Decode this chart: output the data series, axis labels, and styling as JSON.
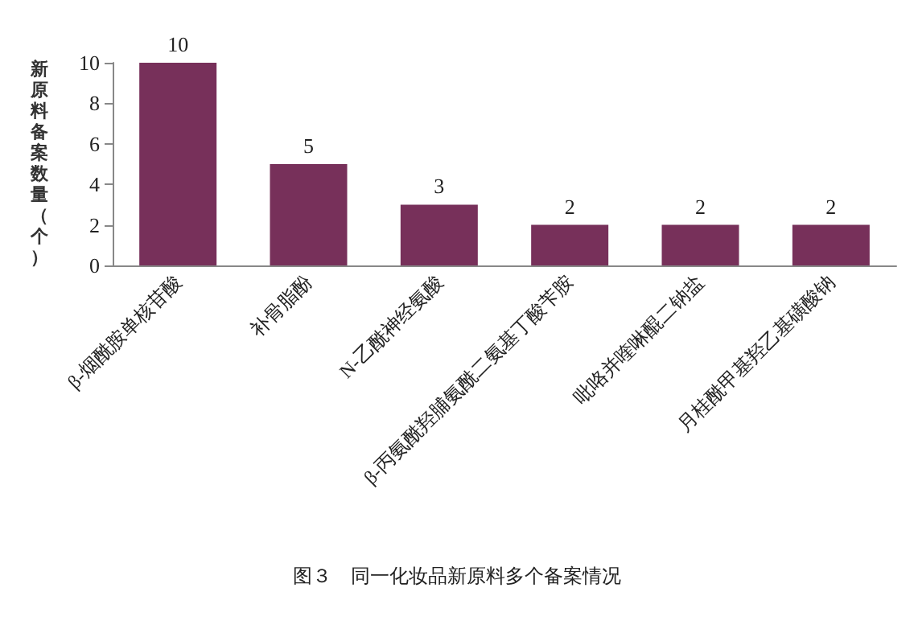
{
  "chart_data": {
    "type": "bar",
    "title": "图３　同一化妆品新原料多个备案情况",
    "ylabel": "新原料备案数量（个）",
    "categories": [
      "β-烟酰胺单核苷酸",
      "补骨脂酚",
      "N-乙酰神经氨酸",
      "β-丙氨酰羟脯氨酰二氨基丁酸苄胺",
      "吡咯并喹啉醌二钠盐",
      "月桂酰甲基羟乙基磺酸钠"
    ],
    "values": [
      10,
      5,
      3,
      2,
      2,
      2
    ],
    "color": "#77305a",
    "data_labels": true,
    "ylim": [
      0,
      10
    ],
    "yticks": [
      0,
      2,
      4,
      6,
      8,
      10
    ],
    "grid": false
  }
}
